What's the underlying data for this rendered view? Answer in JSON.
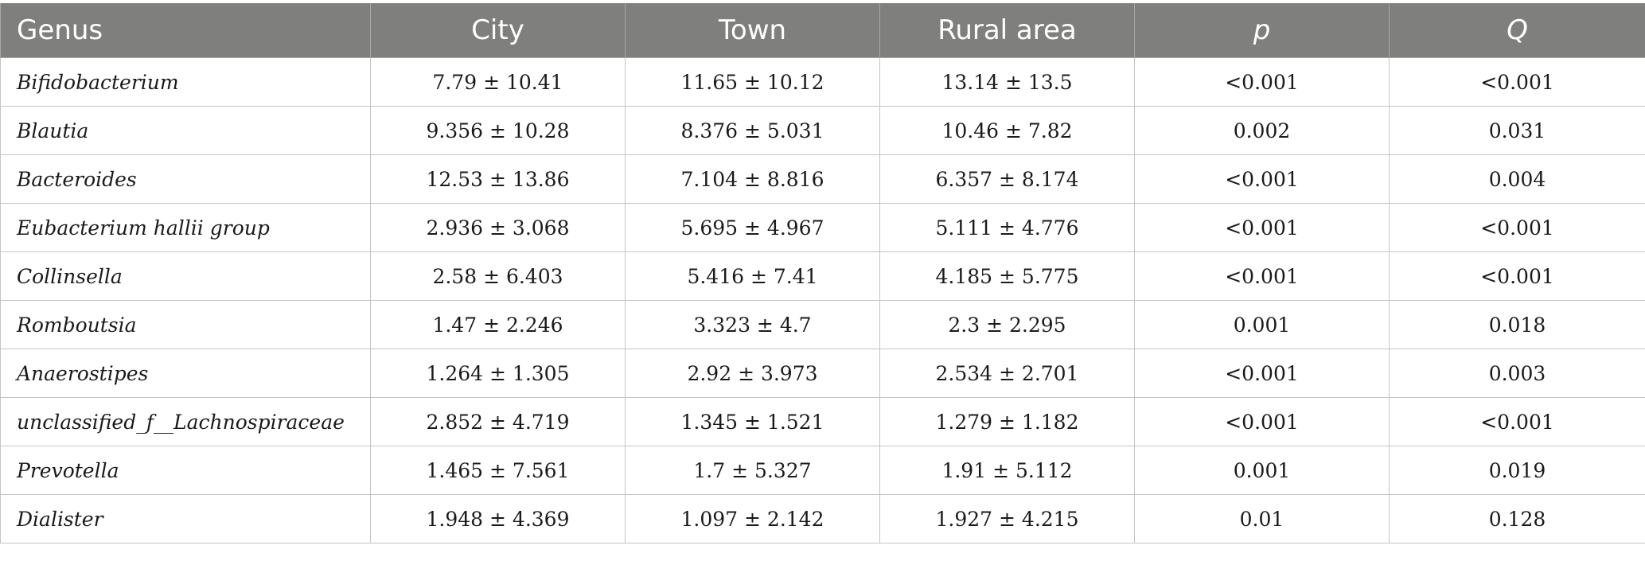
{
  "table": {
    "headers": [
      "Genus",
      "City",
      "Town",
      "Rural area",
      "p",
      "Q"
    ],
    "rows": [
      {
        "genus": "Bifidobacterium",
        "city": "7.79 ± 10.41",
        "town": "11.65 ± 10.12",
        "rural": "13.14 ± 13.5",
        "p": "<0.001",
        "q": "<0.001"
      },
      {
        "genus": "Blautia",
        "city": "9.356 ± 10.28",
        "town": "8.376 ± 5.031",
        "rural": "10.46 ± 7.82",
        "p": "0.002",
        "q": "0.031"
      },
      {
        "genus": "Bacteroides",
        "city": "12.53 ± 13.86",
        "town": "7.104 ± 8.816",
        "rural": "6.357 ± 8.174",
        "p": "<0.001",
        "q": "0.004"
      },
      {
        "genus": "Eubacterium hallii group",
        "city": "2.936 ± 3.068",
        "town": "5.695 ± 4.967",
        "rural": "5.111 ± 4.776",
        "p": "<0.001",
        "q": "<0.001"
      },
      {
        "genus": "Collinsella",
        "city": "2.58 ± 6.403",
        "town": "5.416 ± 7.41",
        "rural": "4.185 ± 5.775",
        "p": "<0.001",
        "q": "<0.001"
      },
      {
        "genus": "Romboutsia",
        "city": "1.47 ± 2.246",
        "town": "3.323 ± 4.7",
        "rural": "2.3 ± 2.295",
        "p": "0.001",
        "q": "0.018"
      },
      {
        "genus": "Anaerostipes",
        "city": "1.264 ± 1.305",
        "town": "2.92 ± 3.973",
        "rural": "2.534 ± 2.701",
        "p": "<0.001",
        "q": "0.003"
      },
      {
        "genus": "unclassified_f__Lachnospiraceae",
        "city": "2.852 ± 4.719",
        "town": "1.345 ± 1.521",
        "rural": "1.279 ± 1.182",
        "p": "<0.001",
        "q": "<0.001"
      },
      {
        "genus": "Prevotella",
        "city": "1.465 ± 7.561",
        "town": "1.7 ± 5.327",
        "rural": "1.91 ± 5.112",
        "p": "0.001",
        "q": "0.019"
      },
      {
        "genus": "Dialister",
        "city": "1.948 ± 4.369",
        "town": "1.097 ± 2.142",
        "rural": "1.927 ± 4.215",
        "p": "0.01",
        "q": "0.128"
      }
    ]
  },
  "colors": {
    "header_bg": "#7f7f7e",
    "header_text": "#ffffff",
    "grid": "#c4c4c4",
    "body_text": "#1a1a1a"
  }
}
